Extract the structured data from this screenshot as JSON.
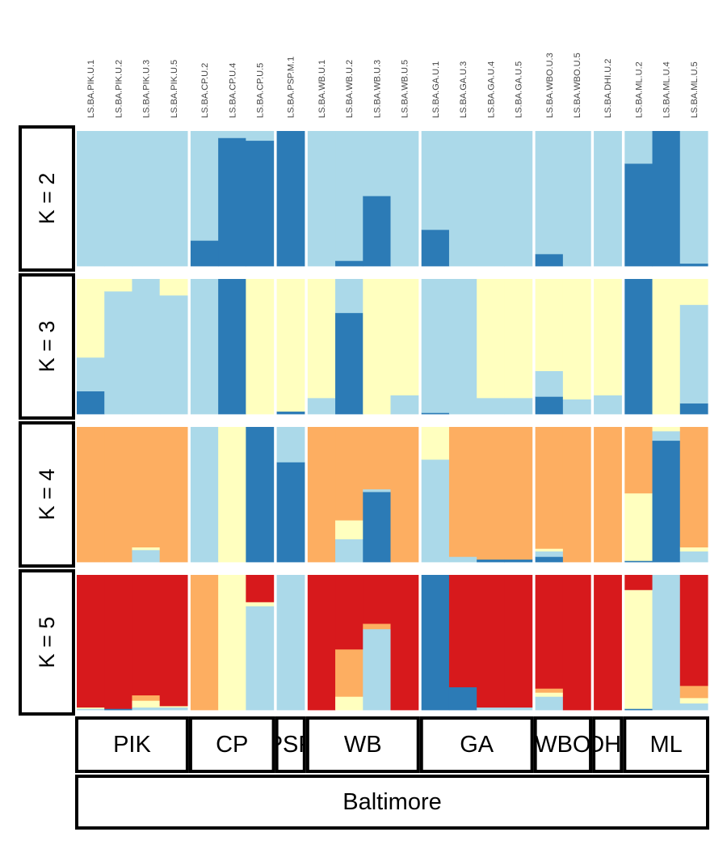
{
  "chart_data": {
    "type": "bar",
    "title": "",
    "stacked": "proportion",
    "colors": [
      "#2c7bb6",
      "#abd9e9",
      "#ffffbf",
      "#fdae61",
      "#d7191c"
    ],
    "ylim": [
      0,
      1
    ],
    "grid": false,
    "legend": "none",
    "samples": [
      "LS.BA.PIK.U.1",
      "LS.BA.PIK.U.2",
      "LS.BA.PIK.U.3",
      "LS.BA.PIK.U.5",
      "LS.BA.CP.U.2",
      "LS.BA.CP.U.4",
      "LS.BA.CP.U.5",
      "LS.BA.PSP.M.1",
      "LS.BA.WB.U.1",
      "LS.BA.WB.U.2",
      "LS.BA.WB.U.3",
      "LS.BA.WB.U.5",
      "LS.BA.GA.U.1",
      "LS.BA.GA.U.3",
      "LS.BA.GA.U.4",
      "LS.BA.GA.U.5",
      "LS.BA.WBO.U.3",
      "LS.BA.WBO.U.5",
      "LS.BA.DHI.U.2",
      "LS.BA.ML.U.2",
      "LS.BA.ML.U.4",
      "LS.BA.ML.U.5"
    ],
    "populations": [
      {
        "name": "PIK",
        "count": 4
      },
      {
        "name": "CP",
        "count": 3
      },
      {
        "name": "PSP",
        "count": 1
      },
      {
        "name": "WB",
        "count": 4
      },
      {
        "name": "GA",
        "count": 4
      },
      {
        "name": "WBO",
        "count": 2
      },
      {
        "name": "DHI",
        "count": 1
      },
      {
        "name": "ML",
        "count": 3
      }
    ],
    "region": "Baltimore",
    "panels": [
      {
        "label": "K = 2",
        "k": 2,
        "series": [
          {
            "color": "#2c7bb6",
            "values": [
              0,
              0,
              0,
              0,
              0.19,
              0.95,
              0.93,
              1.0,
              0,
              0.04,
              0.52,
              0,
              0.27,
              0,
              0,
              0,
              0.09,
              0,
              0,
              0.76,
              1.0,
              0.02
            ]
          },
          {
            "color": "#abd9e9",
            "values": [
              1,
              1,
              1,
              1,
              0.81,
              0.05,
              0.07,
              0.0,
              1,
              0.96,
              0.48,
              1,
              0.73,
              1,
              1,
              1,
              0.91,
              1,
              1,
              0.24,
              0.0,
              0.98
            ]
          }
        ]
      },
      {
        "label": "K = 3",
        "k": 3,
        "series": [
          {
            "color": "#2c7bb6",
            "values": [
              0.17,
              0,
              0,
              0,
              0,
              1.0,
              0,
              0.02,
              0,
              0.75,
              0,
              0,
              0.01,
              0,
              0,
              0,
              0.13,
              0,
              0,
              1.0,
              0,
              0.08
            ]
          },
          {
            "color": "#abd9e9",
            "values": [
              0.25,
              0.91,
              1.0,
              0.88,
              1.0,
              0,
              0,
              0,
              0.12,
              0.25,
              0,
              0.14,
              0.99,
              1.0,
              0.12,
              0.12,
              0.19,
              0.11,
              0.14,
              0,
              0,
              0.73
            ]
          },
          {
            "color": "#ffffbf",
            "values": [
              0.58,
              0.09,
              0,
              0.12,
              0,
              0,
              1.0,
              0.98,
              0.88,
              0,
              1.0,
              0.86,
              0,
              0,
              0.88,
              0.88,
              0.68,
              0.89,
              0.86,
              0,
              1.0,
              0.19
            ]
          }
        ]
      },
      {
        "label": "K = 4",
        "k": 4,
        "series": [
          {
            "color": "#2c7bb6",
            "values": [
              0,
              0,
              0,
              0,
              0,
              0,
              1.0,
              0.74,
              0,
              0,
              0.52,
              0,
              0,
              0,
              0.02,
              0.02,
              0.04,
              0,
              0,
              0.01,
              0.9,
              0
            ]
          },
          {
            "color": "#abd9e9",
            "values": [
              0,
              0,
              0.09,
              0,
              1.0,
              0,
              0,
              0.26,
              0,
              0.17,
              0.02,
              0,
              0.76,
              0.04,
              0,
              0,
              0.04,
              0,
              0,
              0,
              0.07,
              0.08
            ]
          },
          {
            "color": "#ffffbf",
            "values": [
              0,
              0,
              0.02,
              0,
              0,
              1.0,
              0,
              0,
              0,
              0.14,
              0,
              0,
              0.24,
              0,
              0,
              0,
              0.02,
              0,
              0,
              0.5,
              0.03,
              0.03
            ]
          },
          {
            "color": "#fdae61",
            "values": [
              1.0,
              1.0,
              0.89,
              1.0,
              0,
              0,
              0,
              0,
              1.0,
              0.69,
              0.46,
              1.0,
              0,
              0.96,
              0.98,
              0.98,
              0.9,
              1.0,
              1.0,
              0.49,
              0,
              0.89
            ]
          }
        ]
      },
      {
        "label": "K = 5",
        "k": 5,
        "series": [
          {
            "color": "#2c7bb6",
            "values": [
              0,
              0.01,
              0,
              0,
              0,
              0,
              0,
              0,
              0,
              0,
              0,
              0,
              1.0,
              0.17,
              0,
              0,
              0,
              0,
              0,
              0.01,
              0,
              0
            ]
          },
          {
            "color": "#abd9e9",
            "values": [
              0.01,
              0,
              0.02,
              0.02,
              0,
              0,
              0.77,
              1.0,
              0,
              0,
              0.6,
              0,
              0,
              0,
              0.02,
              0.02,
              0.1,
              0,
              0,
              0,
              1.0,
              0.05
            ]
          },
          {
            "color": "#ffffbf",
            "values": [
              0.01,
              0,
              0.05,
              0.01,
              0,
              1.0,
              0.03,
              0,
              0,
              0.1,
              0,
              0,
              0,
              0,
              0,
              0,
              0.03,
              0,
              0,
              0.88,
              0,
              0.04
            ]
          },
          {
            "color": "#fdae61",
            "values": [
              0,
              0,
              0.04,
              0,
              1.0,
              0,
              0,
              0,
              0,
              0.35,
              0.04,
              0,
              0,
              0,
              0,
              0,
              0.03,
              0,
              0,
              0,
              0,
              0.09
            ]
          },
          {
            "color": "#d7191c",
            "values": [
              0.98,
              0.99,
              0.89,
              0.97,
              0,
              0,
              0.2,
              0,
              1.0,
              0.55,
              0.36,
              1.0,
              0,
              0.83,
              0.98,
              0.98,
              0.84,
              1.0,
              1.0,
              0.11,
              0,
              0.82
            ]
          }
        ]
      }
    ]
  }
}
